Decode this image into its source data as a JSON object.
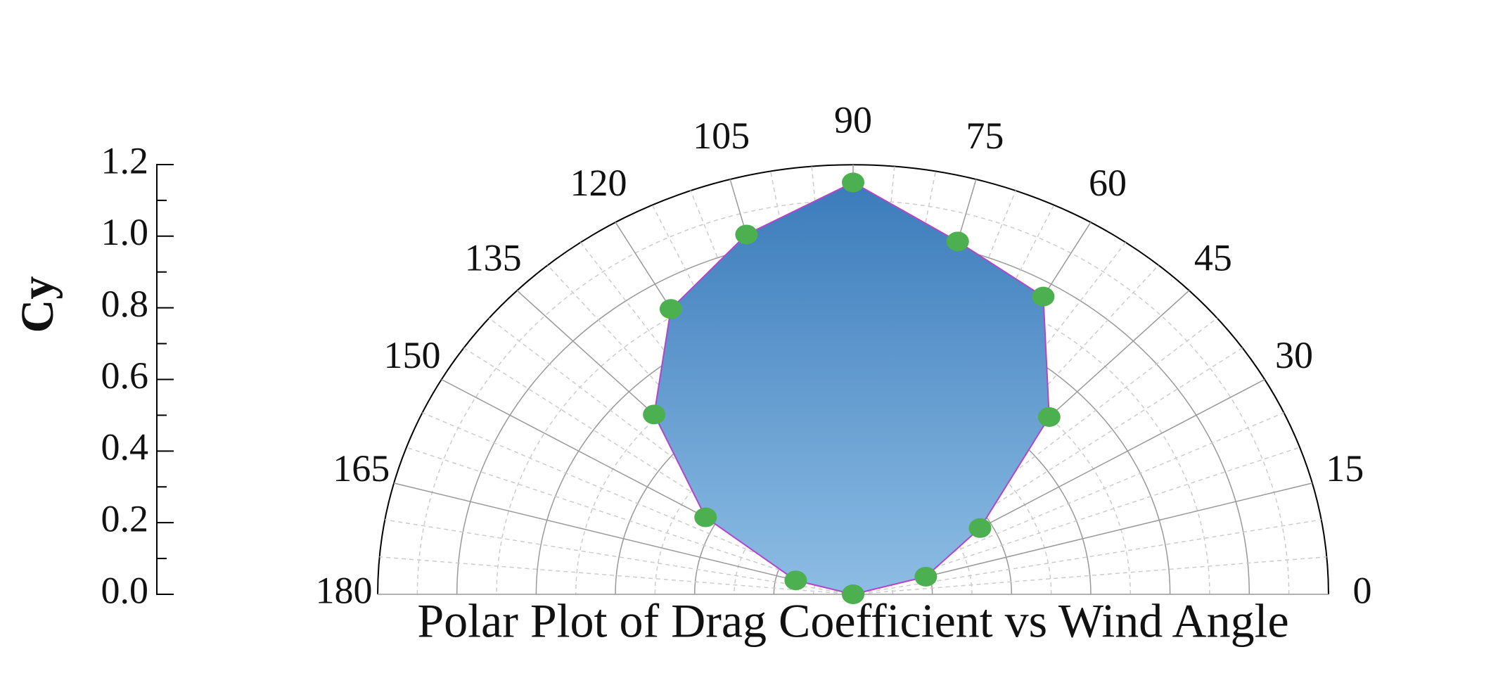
{
  "chart_data": {
    "type": "polar",
    "title": "Polar Plot of Drag Coefficient vs Wind Angle",
    "ylabel": "Cy",
    "x": [
      0,
      15,
      30,
      45,
      60,
      75,
      90,
      105,
      120,
      135,
      150,
      165,
      180
    ],
    "values": [
      0,
      0.19,
      0.37,
      0.7,
      0.96,
      1.02,
      1.15,
      1.04,
      0.92,
      0.71,
      0.43,
      0.15,
      0
    ],
    "xlim": [
      0,
      180
    ],
    "xticks": [
      0,
      15,
      30,
      45,
      60,
      75,
      90,
      105,
      120,
      135,
      150,
      165,
      180
    ],
    "ylim": [
      0,
      1.2
    ],
    "yticks": [
      {
        "value": 0,
        "label": "0.0"
      },
      0.2,
      0.4,
      0.6,
      0.8,
      {
        "value": 1,
        "label": "1.0"
      },
      1.2
    ],
    "fill_top": "#3b7bbb",
    "fill_bottom": "#8dbde4",
    "edge_color": "#b246c8",
    "marker_color": "#4caf50",
    "grid": true
  }
}
